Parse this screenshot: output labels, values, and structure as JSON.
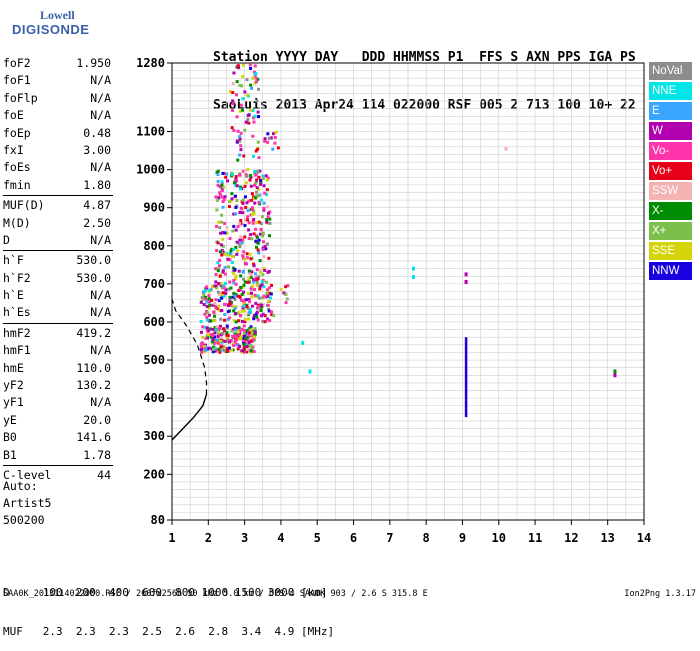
{
  "logo": {
    "line1": "Lowell",
    "line2": "DIGISONDE"
  },
  "header": {
    "line1": "Station YYYY DAY   DDD HHMMSS P1  FFS S AXN PPS IGA PS",
    "line2": "SaoLuis 2013 Apr24 114 022000 RSF 005 2 713 100 10+ 22"
  },
  "params": {
    "g1": [
      [
        "foF2",
        "1.950"
      ],
      [
        "foF1",
        "N/A"
      ],
      [
        "foFlp",
        "N/A"
      ],
      [
        "foE",
        "N/A"
      ],
      [
        "foEp",
        "0.48"
      ],
      [
        "fxI",
        "3.00"
      ],
      [
        "foEs",
        "N/A"
      ],
      [
        "fmin",
        "1.80"
      ]
    ],
    "g2": [
      [
        "MUF(D)",
        "4.87"
      ],
      [
        "M(D)",
        "2.50"
      ],
      [
        "D",
        "N/A"
      ]
    ],
    "g3": [
      [
        "h`F",
        "530.0"
      ],
      [
        "h`F2",
        "530.0"
      ],
      [
        "h`E",
        "N/A"
      ],
      [
        "h`Es",
        "N/A"
      ]
    ],
    "g4": [
      [
        "hmF2",
        "419.2"
      ],
      [
        "hmF1",
        "N/A"
      ],
      [
        "hmE",
        "110.0"
      ],
      [
        "yF2",
        "130.2"
      ],
      [
        "yF1",
        "N/A"
      ],
      [
        "yE",
        "20.0"
      ],
      [
        "B0",
        "141.6"
      ],
      [
        "B1",
        "1.78"
      ]
    ],
    "g5": [
      [
        "C-level",
        "44"
      ]
    ]
  },
  "auto": {
    "line1": "Auto:",
    "line2": "Artist5",
    "line3": "500200"
  },
  "legend": [
    {
      "label": "NoVal",
      "color": "#8c8c8c"
    },
    {
      "label": "NNE",
      "color": "#00e5e5"
    },
    {
      "label": "E",
      "color": "#3aa6ff"
    },
    {
      "label": "W",
      "color": "#b000b0"
    },
    {
      "label": "Vo-",
      "color": "#ff33aa"
    },
    {
      "label": "Vo+",
      "color": "#e8001a"
    },
    {
      "label": "SSW",
      "color": "#f4b2b2"
    },
    {
      "label": "X-",
      "color": "#008c00"
    },
    {
      "label": "X+",
      "color": "#7cbf4a"
    },
    {
      "label": "SSE",
      "color": "#d4d40a"
    },
    {
      "label": "NNW",
      "color": "#1a00e0"
    }
  ],
  "muf_table": {
    "d_line": "D     100  200  400  600  800 1000 1500 3000 [km]",
    "muf_line": "MUF   2.3  2.3  2.3  2.5  2.6  2.8  3.4  4.9 [MHz]"
  },
  "footer": {
    "text": "SAA0K_2013114022000.RSF / 260fx256h 50 kHz 5.0 km / DPS-4 SAA0K 903 / 2.6 S 315.8 E",
    "version": "Ion2Png 1.3.17"
  },
  "chart_data": {
    "type": "scatter",
    "x_ticks": [
      1,
      2,
      3,
      4,
      5,
      6,
      7,
      8,
      9,
      10,
      11,
      12,
      13,
      14
    ],
    "y_ticks": [
      80,
      200,
      300,
      400,
      500,
      600,
      700,
      800,
      900,
      1000,
      1100,
      1280
    ],
    "xlim": [
      1,
      14
    ],
    "ylim": [
      80,
      1280
    ],
    "grid": true,
    "grid_x_step": 0.5,
    "grid_y_step": 20,
    "profile": {
      "x": [
        1.0,
        1.3,
        1.6,
        1.85,
        1.95,
        1.95,
        1.9,
        1.7,
        1.4,
        1.1,
        1.0
      ],
      "y": [
        290,
        320,
        350,
        380,
        410,
        440,
        480,
        540,
        590,
        630,
        660
      ]
    },
    "echo_clusters": [
      {
        "x": [
          1.8,
          3.3
        ],
        "y": [
          520,
          590
        ],
        "density": 240
      },
      {
        "x": [
          1.8,
          3.8
        ],
        "y": [
          600,
          700
        ],
        "density": 220
      },
      {
        "x": [
          2.2,
          3.7
        ],
        "y": [
          700,
          1000
        ],
        "density": 320
      },
      {
        "x": [
          2.6,
          3.4
        ],
        "y": [
          1000,
          1280
        ],
        "density": 80
      },
      {
        "x": [
          3.5,
          4.0
        ],
        "y": [
          1050,
          1100
        ],
        "density": 12
      },
      {
        "x": [
          4.0,
          4.2
        ],
        "y": [
          650,
          700
        ],
        "density": 8
      }
    ],
    "isolated_echoes": [
      {
        "x": 4.8,
        "y": 470,
        "color": "#00e5e5"
      },
      {
        "x": 4.6,
        "y": 545,
        "color": "#00e5e5"
      },
      {
        "x": 7.65,
        "y": 740,
        "color": "#00e5e5"
      },
      {
        "x": 7.65,
        "y": 718,
        "color": "#00e5e5"
      },
      {
        "x": 9.1,
        "y": 725,
        "color": "#b000b0"
      },
      {
        "x": 9.1,
        "y": 705,
        "color": "#b000b0"
      },
      {
        "x": 10.2,
        "y": 1055,
        "color": "#f4b2b2"
      },
      {
        "x": 13.2,
        "y": 470,
        "color": "#008c00"
      },
      {
        "x": 13.2,
        "y": 460,
        "color": "#b000b0"
      }
    ],
    "vertical_trace": {
      "x": 9.1,
      "y": [
        350,
        560
      ],
      "color": "#1a00e0"
    }
  }
}
